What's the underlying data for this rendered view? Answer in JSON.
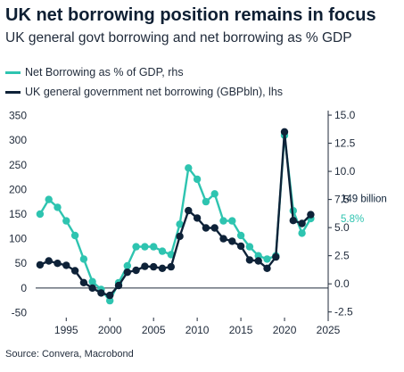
{
  "title": "UK net borrowing position remains in focus",
  "subtitle": "UK general govt borrowing and net borrowing as % GDP",
  "source": "Source: Convera, Macrobond",
  "colors": {
    "pct_series": "#2ec4b0",
    "gbp_series": "#0e2238",
    "axis": "#1f2a3a"
  },
  "legend": [
    {
      "label": "Net Borrowing as % of GDP, rhs",
      "color": "#2ec4b0"
    },
    {
      "label": "UK general government net borrowing (GBPbln), lhs",
      "color": "#0e2238"
    }
  ],
  "chart_data": {
    "type": "line",
    "x": [
      1992,
      1993,
      1994,
      1995,
      1996,
      1997,
      1998,
      1999,
      2000,
      2001,
      2002,
      2003,
      2004,
      2005,
      2006,
      2007,
      2008,
      2009,
      2010,
      2011,
      2012,
      2013,
      2014,
      2015,
      2016,
      2017,
      2018,
      2019,
      2020,
      2021,
      2022,
      2023
    ],
    "series": [
      {
        "name": "Net Borrowing as % of GDP, rhs",
        "axis": "right",
        "values": [
          6.2,
          7.5,
          6.8,
          5.6,
          4.3,
          2.2,
          0.2,
          -0.5,
          -1.5,
          0.1,
          1.6,
          3.3,
          3.3,
          3.3,
          2.9,
          2.6,
          5.3,
          10.3,
          9.3,
          7.3,
          8.0,
          5.6,
          5.6,
          4.3,
          3.3,
          2.5,
          2.2,
          2.5,
          13.2,
          6.5,
          4.5,
          5.8
        ]
      },
      {
        "name": "UK general government net borrowing (GBPbln), lhs",
        "axis": "left",
        "values": [
          47,
          55,
          50,
          46,
          35,
          11,
          0,
          -10,
          -15,
          5,
          32,
          36,
          44,
          43,
          40,
          43,
          105,
          157,
          142,
          122,
          122,
          100,
          95,
          85,
          57,
          55,
          40,
          63,
          317,
          137,
          131,
          149
        ]
      }
    ],
    "x_ticks": [
      "1995",
      "2000",
      "2005",
      "2010",
      "2015",
      "2020",
      "2025"
    ],
    "x_range": [
      1991.5,
      2025
    ],
    "left_axis": {
      "ylim": [
        -60,
        360
      ],
      "ticks": [
        "-50",
        "0",
        "50",
        "100",
        "150",
        "200",
        "250",
        "300",
        "350"
      ]
    },
    "right_axis": {
      "ylim": [
        -3,
        15.4
      ],
      "ticks": [
        "-2.5",
        "0.0",
        "2.5",
        "5.0",
        "7.5",
        "10.0",
        "12.5",
        "15.0"
      ]
    },
    "annotations": [
      {
        "text": "149 billion",
        "series": "UK general government net borrowing (GBPbln), lhs"
      },
      {
        "text": "5.8%",
        "series": "Net Borrowing as % of GDP, rhs"
      }
    ],
    "grid": false,
    "legend_position": "top-left"
  }
}
